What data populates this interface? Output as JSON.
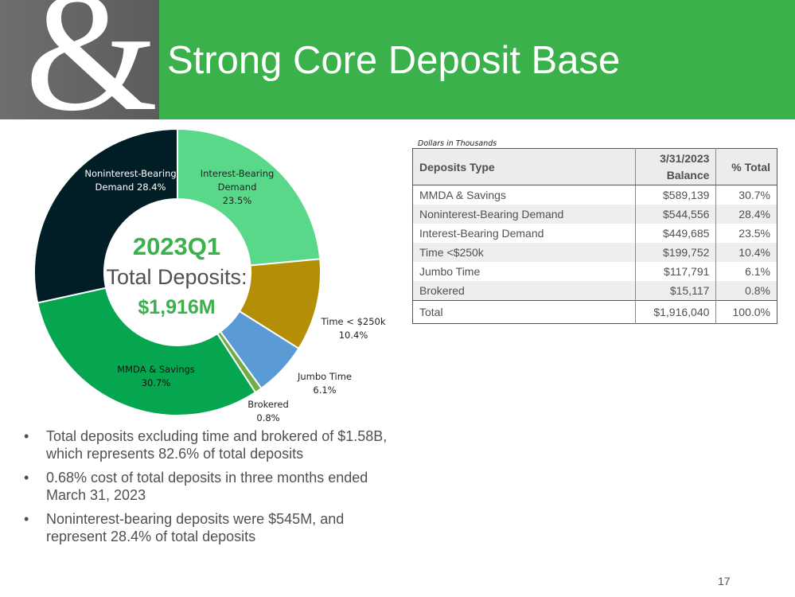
{
  "header": {
    "logo_glyph": "&",
    "title": "Strong Core Deposit Base",
    "green": "#3ab14a",
    "gray": "#646466"
  },
  "chart_data": {
    "type": "pie",
    "categories": [
      "Interest-Bearing Demand",
      "Time < $250k",
      "Jumbo Time",
      "Brokered",
      "MMDA & Savings",
      "Noninterest-Bearing Demand"
    ],
    "values": [
      23.5,
      10.4,
      6.1,
      0.8,
      30.7,
      28.4
    ],
    "colors": [
      "#5ad88a",
      "#b38e06",
      "#5b9bd5",
      "#70ad47",
      "#06a650",
      "#011e26"
    ],
    "labels": [
      {
        "lines": [
          "Interest-Bearing",
          "Demand",
          "23.5%"
        ],
        "color": "#222222"
      },
      {
        "lines": [
          "Time < $250k",
          "10.4%"
        ],
        "color": "#222222"
      },
      {
        "lines": [
          "Jumbo Time",
          "6.1%"
        ],
        "color": "#222222"
      },
      {
        "lines": [
          "Brokered",
          "0.8%"
        ],
        "color": "#222222"
      },
      {
        "lines": [
          "MMDA & Savings",
          "30.7%"
        ],
        "color": "#111111"
      },
      {
        "lines": [
          "Noninterest-Bearing",
          "Demand 28.4%"
        ],
        "color": "#ffffff"
      }
    ],
    "center": {
      "quarter": "2023Q1",
      "label": "Total Deposits:",
      "value": "$1,916M"
    }
  },
  "table": {
    "note": "Dollars in Thousands",
    "headers": {
      "type": "Deposits Type",
      "balance_line1": "3/31/2023",
      "balance_line2": "Balance",
      "pct": "% Total"
    },
    "rows": [
      {
        "type": "MMDA & Savings",
        "balance": "$589,139",
        "pct": "30.7%"
      },
      {
        "type": "Noninterest-Bearing Demand",
        "balance": "$544,556",
        "pct": "28.4%"
      },
      {
        "type": "Interest-Bearing Demand",
        "balance": "$449,685",
        "pct": "23.5%"
      },
      {
        "type": "Time <$250k",
        "balance": "$199,752",
        "pct": "10.4%"
      },
      {
        "type": "Jumbo Time",
        "balance": "$117,791",
        "pct": "6.1%"
      },
      {
        "type": "Brokered",
        "balance": "$15,117",
        "pct": "0.8%"
      }
    ],
    "total": {
      "type": "Total",
      "balance": "$1,916,040",
      "pct": "100.0%"
    }
  },
  "bullets": [
    "Total deposits excluding time and brokered of $1.58B, which represents 82.6% of total deposits",
    "0.68% cost of total deposits in three months ended March 31, 2023",
    "Noninterest-bearing deposits were $545M, and represent 28.4% of total deposits"
  ],
  "bullet_glyph": "•",
  "page_number": "17"
}
